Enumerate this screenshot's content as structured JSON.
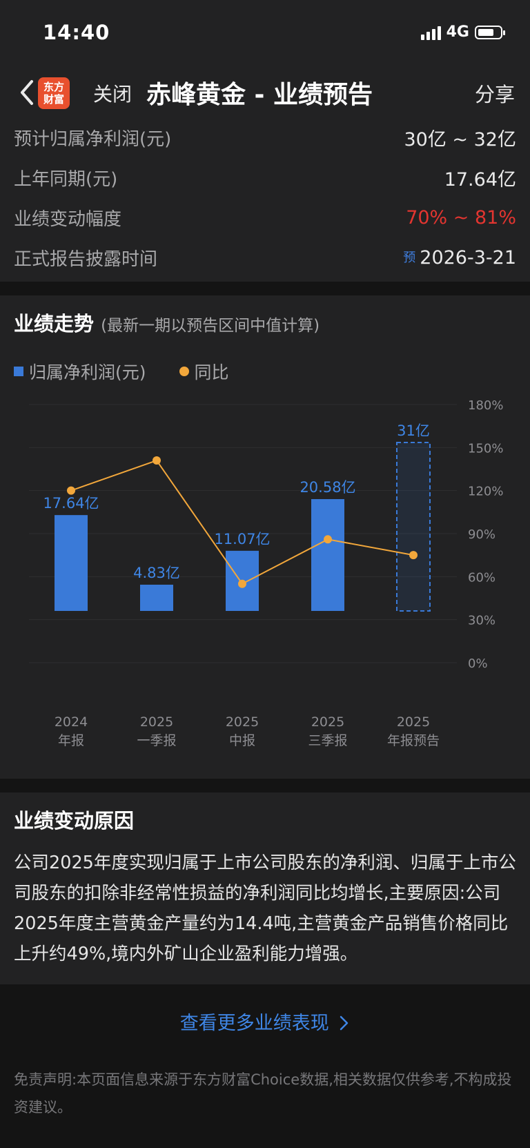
{
  "status": {
    "time": "14:40",
    "network": "4G"
  },
  "nav": {
    "logo_line1": "东方",
    "logo_line2": "财富",
    "close_label": "关闭",
    "title": "赤峰黄金 - 业绩预告",
    "share_label": "分享"
  },
  "summary": {
    "rows": [
      {
        "label": "预计归属净利润(元)",
        "value": "30亿 ~ 32亿"
      },
      {
        "label": "上年同期(元)",
        "value": "17.64亿"
      },
      {
        "label": "业绩变动幅度",
        "value": "70% ~ 81%"
      },
      {
        "label": "正式报告披露时间",
        "tag": "预",
        "value": "2026-3-21"
      }
    ]
  },
  "trend": {
    "title": "业绩走势",
    "subtitle": "(最新一期以预告区间中值计算)",
    "legend_bar": "归属净利润(元)",
    "legend_line": "同比"
  },
  "colors": {
    "bar": "#3a7ad8",
    "line": "#f2a73b",
    "red": "#e33530",
    "link": "#3f86e6"
  },
  "chart_data": {
    "type": "bar",
    "categories": [
      [
        "2024",
        "年报"
      ],
      [
        "2025",
        "一季报"
      ],
      [
        "2025",
        "中报"
      ],
      [
        "2025",
        "三季报"
      ],
      [
        "2025",
        "年报预告"
      ]
    ],
    "series": [
      {
        "name": "归属净利润(元)",
        "type": "bar",
        "values": [
          17.64,
          4.83,
          11.07,
          20.58,
          31
        ],
        "labels": [
          "17.64亿",
          "4.83亿",
          "11.07亿",
          "20.58亿",
          "31亿"
        ],
        "forecast_index": 4
      },
      {
        "name": "同比",
        "type": "line",
        "values": [
          120,
          141,
          55,
          86,
          75
        ]
      }
    ],
    "right_axis": {
      "ticks": [
        "180%",
        "150%",
        "120%",
        "90%",
        "60%",
        "30%",
        "0%"
      ],
      "min": 0,
      "max": 180
    },
    "grid": true
  },
  "reason": {
    "title": "业绩变动原因",
    "text": "公司2025年度实现归属于上市公司股东的净利润、归属于上市公司股东的扣除非经常性损益的净利润同比均增长,主要原因:公司2025年度主营黄金产量约为14.4吨,主营黄金产品销售价格同比上升约49%,境内外矿山企业盈利能力增强。"
  },
  "more_link": "查看更多业绩表现",
  "disclaimer": "免责声明:本页面信息来源于东方财富Choice数据,相关数据仅供参考,不构成投资建议。"
}
